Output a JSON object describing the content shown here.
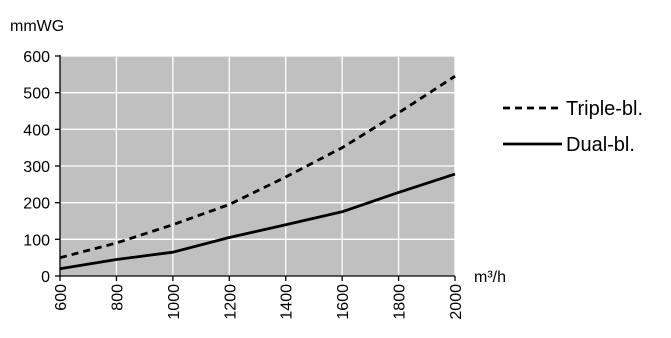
{
  "chart_data": {
    "type": "line",
    "ylabel": "mmWG",
    "xlabel": "m³/h",
    "xlim": [
      600,
      2000
    ],
    "ylim": [
      0,
      600
    ],
    "x_ticks": [
      600,
      800,
      1000,
      1200,
      1400,
      1600,
      1800,
      2000
    ],
    "y_ticks": [
      0,
      100,
      200,
      300,
      400,
      500,
      600
    ],
    "grid": true,
    "legend_position": "right",
    "colors": {
      "plot_background": "#c0c0c0",
      "grid": "#ffffff",
      "line": "#000000"
    },
    "series": [
      {
        "name": "Triple-bl.",
        "style": "dashed",
        "points": [
          [
            600,
            50
          ],
          [
            800,
            90
          ],
          [
            1000,
            140
          ],
          [
            1200,
            195
          ],
          [
            1400,
            270
          ],
          [
            1600,
            350
          ],
          [
            1800,
            445
          ],
          [
            2000,
            545
          ]
        ]
      },
      {
        "name": "Dual-bl.",
        "style": "solid",
        "points": [
          [
            600,
            20
          ],
          [
            800,
            45
          ],
          [
            1000,
            65
          ],
          [
            1200,
            105
          ],
          [
            1400,
            140
          ],
          [
            1600,
            175
          ],
          [
            1800,
            228
          ],
          [
            2000,
            278
          ]
        ]
      }
    ]
  }
}
